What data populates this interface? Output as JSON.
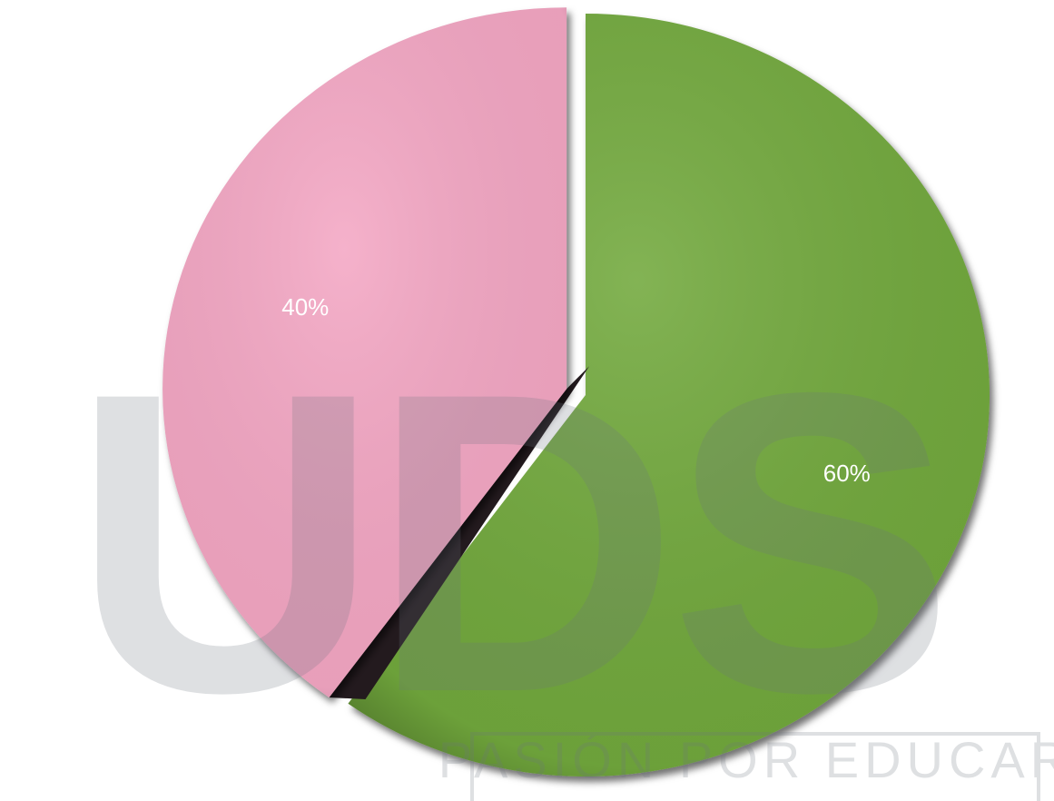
{
  "chart_data": {
    "type": "pie",
    "values": [
      60,
      40
    ],
    "value_labels": [
      "60%",
      "40%"
    ],
    "colors": [
      "#72a93e",
      "#f4a7c4"
    ],
    "watermark": "UDS",
    "watermark_tagline": "PASIÓN POR EDUCAR"
  }
}
